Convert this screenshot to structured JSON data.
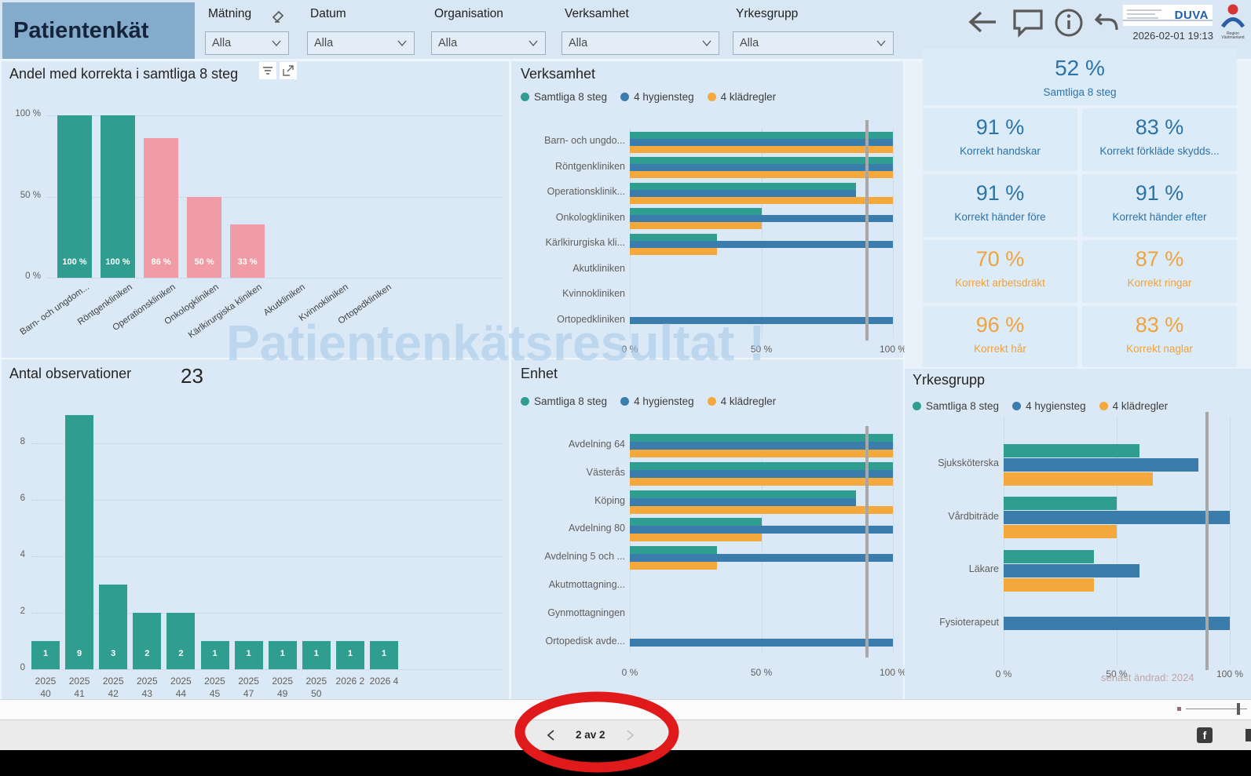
{
  "header": {
    "title": "Patientenkät",
    "timestamp": "2026-02-01 19:13",
    "logos": {
      "duva": "DUVA",
      "region": "Region Västmanland"
    },
    "filters": [
      {
        "label": "Mätning",
        "value": "Alla"
      },
      {
        "label": "Datum",
        "value": "Alla"
      },
      {
        "label": "Organisation",
        "value": "Alla"
      },
      {
        "label": "Verksamhet",
        "value": "Alla"
      },
      {
        "label": "Yrkesgrupp",
        "value": "Alla"
      }
    ]
  },
  "colors": {
    "teal": "#2f9d8f",
    "pink": "#f09ba6",
    "blue": "#3a7cab",
    "orange": "#f5a83b",
    "kpi_blue": "#2d73a8",
    "kpi_orange": "#f0a23c",
    "header_box": "#84abcb",
    "annotation_red": "#e01a1a",
    "reference_gray": "#a8a8a8"
  },
  "kpis": {
    "main": {
      "value": "52 %",
      "label": "Samtliga 8 steg"
    },
    "blue": [
      {
        "value": "91 %",
        "label": "Korrekt handskar"
      },
      {
        "value": "83 %",
        "label": "Korrekt förkläde skydds..."
      },
      {
        "value": "91 %",
        "label": "Korrekt händer före"
      },
      {
        "value": "91 %",
        "label": "Korrekt händer efter"
      }
    ],
    "orange": [
      {
        "value": "70 %",
        "label": "Korrekt arbetsdräkt"
      },
      {
        "value": "87 %",
        "label": "Korrekt ringar"
      },
      {
        "value": "96 %",
        "label": "Korrekt hår"
      },
      {
        "value": "83 %",
        "label": "Korrekt naglar"
      }
    ]
  },
  "chart_data": [
    {
      "id": "andel",
      "type": "bar",
      "title": "Andel med korrekta i samtliga 8 steg",
      "categories": [
        "Barn- och ungdom...",
        "Röntgenkliniken",
        "Operationskliniken",
        "Onkologkliniken",
        "Kärlkirurgiska kliniken",
        "Akutkliniken",
        "Kvinnokliniken",
        "Ortopedkliniken"
      ],
      "values": [
        100,
        100,
        86,
        50,
        33,
        null,
        null,
        null
      ],
      "data_labels": [
        "100 %",
        "100 %",
        "86 %",
        "50 %",
        "33 %"
      ],
      "bar_colors": [
        "#2f9d8f",
        "#2f9d8f",
        "#f09ba6",
        "#f09ba6",
        "#f09ba6"
      ],
      "y_ticks": [
        "100 %",
        "50 %",
        "0 %"
      ],
      "ylim": [
        0,
        100
      ]
    },
    {
      "id": "verksamhet",
      "type": "bar-horizontal-grouped",
      "title": "Verksamhet",
      "series": [
        "Samtliga 8 steg",
        "4 hygiensteg",
        "4 klädregler"
      ],
      "series_colors": [
        "#2f9d8f",
        "#3a7cab",
        "#f5a83b"
      ],
      "categories": [
        "Barn- och ungdo...",
        "Röntgenkliniken",
        "Operationsklinik...",
        "Onkologkliniken",
        "Kärlkirurgiska kli...",
        "Akutkliniken",
        "Kvinnokliniken",
        "Ortopedkliniken"
      ],
      "values": [
        [
          100,
          100,
          100
        ],
        [
          100,
          100,
          100
        ],
        [
          86,
          86,
          100
        ],
        [
          50,
          100,
          50
        ],
        [
          33,
          100,
          33
        ],
        [
          null,
          null,
          null
        ],
        [
          null,
          null,
          null
        ],
        [
          null,
          100,
          null
        ]
      ],
      "x_ticks": [
        "0 %",
        "50 %",
        "100 %"
      ],
      "reference_line": 90,
      "xlim": [
        0,
        100
      ]
    },
    {
      "id": "antal",
      "type": "bar",
      "title": "Antal observationer",
      "total": "23",
      "categories": [
        "2025 40",
        "2025 41",
        "2025 42",
        "2025 43",
        "2025 44",
        "2025 45",
        "2025 47",
        "2025 49",
        "2025 50",
        "2026 2",
        "2026 4"
      ],
      "values": [
        1,
        9,
        3,
        2,
        2,
        1,
        1,
        1,
        1,
        1,
        1
      ],
      "data_labels": [
        "1",
        "9",
        "3",
        "2",
        "2",
        "1",
        "1",
        "1",
        "1",
        "1",
        "1"
      ],
      "y_ticks": [
        8,
        6,
        4,
        2,
        0
      ],
      "ylim": [
        0,
        9
      ]
    },
    {
      "id": "enhet",
      "type": "bar-horizontal-grouped",
      "title": "Enhet",
      "series": [
        "Samtliga 8 steg",
        "4 hygiensteg",
        "4 klädregler"
      ],
      "series_colors": [
        "#2f9d8f",
        "#3a7cab",
        "#f5a83b"
      ],
      "categories": [
        "Avdelning 64",
        "Västerås",
        "Köping",
        "Avdelning 80",
        "Avdelning 5 och ...",
        "Akutmottagning...",
        "Gynmottagningen",
        "Ortopedisk avde..."
      ],
      "values": [
        [
          100,
          100,
          100
        ],
        [
          100,
          100,
          100
        ],
        [
          86,
          86,
          100
        ],
        [
          50,
          100,
          50
        ],
        [
          33,
          100,
          33
        ],
        [
          null,
          null,
          null
        ],
        [
          null,
          null,
          null
        ],
        [
          null,
          100,
          null
        ]
      ],
      "x_ticks": [
        "0 %",
        "50 %",
        "100 %"
      ],
      "reference_line": 90,
      "xlim": [
        0,
        100
      ]
    },
    {
      "id": "yrkesgrupp",
      "type": "bar-horizontal-grouped",
      "title": "Yrkesgrupp",
      "series": [
        "Samtliga 8 steg",
        "4 hygiensteg",
        "4 klädregler"
      ],
      "series_colors": [
        "#2f9d8f",
        "#3a7cab",
        "#f5a83b"
      ],
      "categories": [
        "Sjuksköterska",
        "Vårdbiträde",
        "Läkare",
        "Fysioterapeut"
      ],
      "values": [
        [
          60,
          86,
          66
        ],
        [
          50,
          100,
          50
        ],
        [
          40,
          60,
          40
        ],
        [
          null,
          100,
          null
        ]
      ],
      "x_ticks": [
        "0 %",
        "50 %",
        "100 %"
      ],
      "reference_line": 90,
      "xlim": [
        0,
        100
      ]
    }
  ],
  "watermark": "Patientenkätsresultat !",
  "footer": {
    "pagination_label": "2 av 2",
    "last_modified": "senast ändrad: 2024"
  }
}
